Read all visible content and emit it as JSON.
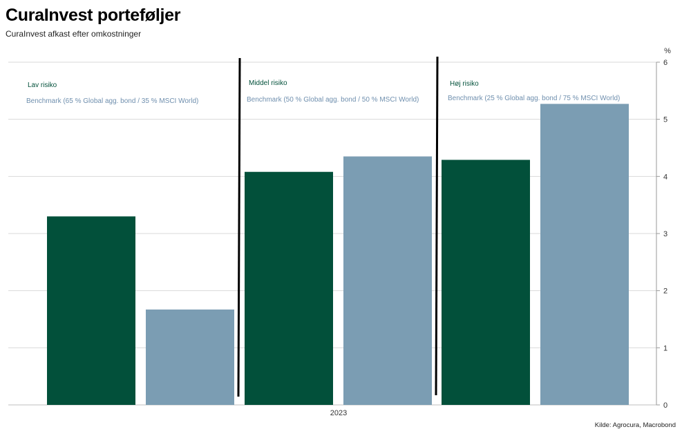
{
  "header": {
    "title": "CuraInvest porteføljer",
    "subtitle": "CuraInvest afkast efter omkostninger"
  },
  "source": "Kilde: Agrocura, Macrobond",
  "colors": {
    "portfolio": "#02503a",
    "benchmark": "#7b9db3",
    "grid": "#d9d9d9",
    "divider": "#000000"
  },
  "chart_data": {
    "type": "bar",
    "categories": [
      "2023"
    ],
    "y_unit": "%",
    "ylim": [
      0,
      6
    ],
    "yticks": [
      0,
      1,
      2,
      3,
      4,
      5,
      6
    ],
    "grid": true,
    "groups": [
      {
        "name": "Lav risiko",
        "benchmark_name": "Benchmark (65 % Global agg. bond / 35 % MSCI World)",
        "portfolio_value": 3.3,
        "benchmark_value": 1.67
      },
      {
        "name": "Middel risiko",
        "benchmark_name": "Benchmark (50 % Global agg. bond / 50 % MSCI World)",
        "portfolio_value": 4.08,
        "benchmark_value": 4.35
      },
      {
        "name": "Høj risiko",
        "benchmark_name": "Benchmark (25 % Global agg. bond / 75 % MSCI World)",
        "portfolio_value": 4.29,
        "benchmark_value": 5.27
      }
    ]
  }
}
